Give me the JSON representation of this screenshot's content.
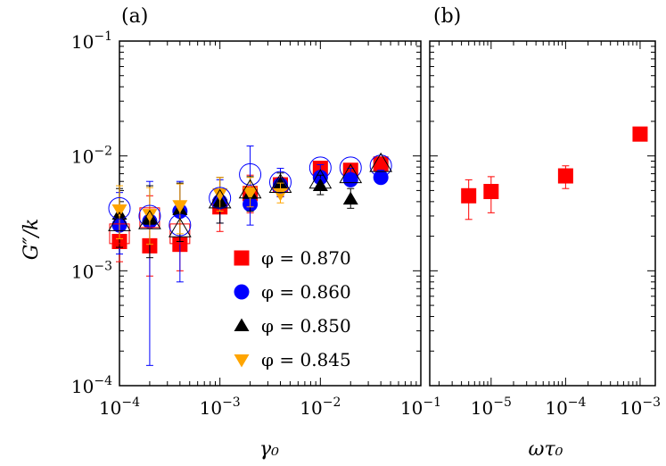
{
  "figure": {
    "panel_a_label": "(a)",
    "panel_b_label": "(b)",
    "ylabel": "G″/k",
    "xlabel_a": "γ₀",
    "xlabel_b": "ωτ₀"
  },
  "colors": {
    "phi_0870": "#ff0000",
    "phi_0860": "#0000ff",
    "phi_0850": "#000000",
    "phi_0845": "#ffa500"
  },
  "chart_data": [
    {
      "type": "scatter",
      "panel": "(a)",
      "xscale": "log",
      "yscale": "log",
      "xlabel": "γ₀",
      "ylabel": "G″/k",
      "xlim": [
        0.0001,
        0.1
      ],
      "ylim": [
        0.0001,
        0.1
      ],
      "x_ticks": [
        0.0001,
        0.001,
        0.01,
        0.1
      ],
      "x_tick_labels": [
        "10−4",
        "10−3",
        "10−2",
        "10−1"
      ],
      "y_ticks": [
        0.0001,
        0.001,
        0.01,
        0.1
      ],
      "y_tick_labels": [
        "10−4",
        "10−3",
        "10−2",
        "10−1"
      ],
      "legend_position": "bottom-center",
      "series": [
        {
          "name": "φ = 0.870",
          "marker": "square",
          "color": "#ff0000",
          "x": [
            0.0001,
            0.0002,
            0.0004,
            0.001,
            0.002,
            0.004,
            0.01,
            0.02,
            0.04
          ],
          "y": [
            0.0018,
            0.00165,
            0.0017,
            0.0036,
            0.0047,
            0.0056,
            0.0078,
            0.0075,
            0.0085
          ],
          "y_err_low": [
            0.0012,
            0.0009,
            0.001,
            0.0022,
            0.0032,
            0.0045,
            0.0066,
            0.0066,
            0.0075
          ],
          "y_err_high": [
            0.0026,
            0.0045,
            0.003,
            0.005,
            0.0068,
            0.0065,
            0.0088,
            0.0084,
            0.0095
          ]
        },
        {
          "name": "φ = 0.860",
          "marker": "circle",
          "color": "#0000ff",
          "x": [
            0.0001,
            0.0002,
            0.0004,
            0.001,
            0.002,
            0.004,
            0.01,
            0.02,
            0.04
          ],
          "y": [
            0.0025,
            0.0027,
            0.0033,
            0.004,
            0.0038,
            0.0056,
            0.0065,
            0.0062,
            0.0065
          ],
          "y_err_low": [
            0.0014,
            0.00015,
            0.0008,
            0.0026,
            0.0025,
            0.0044,
            0.0055,
            0.0055,
            0.0058
          ],
          "y_err_high": [
            0.0048,
            0.006,
            0.006,
            0.0062,
            0.0122,
            0.0078,
            0.0084,
            0.0078,
            0.0075
          ]
        },
        {
          "name": "φ = 0.850",
          "marker": "triangle-up",
          "color": "#000000",
          "x": [
            0.0001,
            0.0002,
            0.0004,
            0.001,
            0.002,
            0.004,
            0.01,
            0.02
          ],
          "y": [
            0.0031,
            0.0028,
            0.0034,
            0.004,
            0.0047,
            0.0057,
            0.0055,
            0.0042
          ],
          "y_err_low": [
            0.0016,
            0.0013,
            0.0018,
            0.0026,
            0.0033,
            0.0046,
            0.0046,
            0.0035
          ],
          "y_err_high": [
            0.0052,
            0.0055,
            0.0058,
            0.0065,
            0.0066,
            0.0071,
            0.0068,
            0.0052
          ]
        },
        {
          "name": "φ = 0.845",
          "marker": "triangle-down",
          "color": "#ffa500",
          "x": [
            0.0001,
            0.0002,
            0.0004,
            0.001,
            0.002,
            0.004
          ],
          "y": [
            0.0034,
            0.0031,
            0.0037,
            0.0047,
            0.0048,
            0.0047
          ],
          "y_err_low": [
            0.0019,
            0.0017,
            0.0021,
            0.0033,
            0.0036,
            0.0039
          ],
          "y_err_high": [
            0.0055,
            0.0053,
            0.0057,
            0.0065,
            0.0065,
            0.0058
          ]
        },
        {
          "name": "",
          "marker": "open-square",
          "color": "#ff0000",
          "x": [
            0.0001,
            0.0002,
            0.0004
          ],
          "y": [
            0.0021,
            0.0029,
            0.0021
          ]
        },
        {
          "name": "",
          "marker": "open-circle",
          "color": "#0000ff",
          "x": [
            0.0001,
            0.0002,
            0.0004,
            0.001,
            0.002,
            0.004,
            0.01,
            0.02,
            0.04
          ],
          "y": [
            0.0035,
            0.003,
            0.0025,
            0.0043,
            0.0069,
            0.0059,
            0.0079,
            0.0079,
            0.0082
          ]
        },
        {
          "name": "",
          "marker": "open-triangle-up",
          "color": "#000000",
          "x": [
            0.0001,
            0.0002,
            0.0004,
            0.001,
            0.002,
            0.004,
            0.01,
            0.02,
            0.04
          ],
          "y": [
            0.0026,
            0.0027,
            0.0023,
            0.0041,
            0.005,
            0.0056,
            0.0061,
            0.0068,
            0.0085
          ]
        }
      ]
    },
    {
      "type": "scatter",
      "panel": "(b)",
      "xscale": "log",
      "yscale": "log",
      "xlabel": "ωτ₀",
      "xlim": [
        1.5e-06,
        0.0016
      ],
      "ylim": [
        0.0001,
        0.1
      ],
      "x_ticks": [
        1e-05,
        0.0001,
        0.001
      ],
      "x_tick_labels": [
        "10−5",
        "10−4",
        "10−3"
      ],
      "series": [
        {
          "name": "",
          "marker": "square",
          "color": "#ff0000",
          "x": [
            5e-06,
            1e-05,
            0.0001,
            0.001
          ],
          "y": [
            0.0045,
            0.0049,
            0.0067,
            0.0155
          ],
          "y_err_low": [
            0.0028,
            0.0032,
            0.0052,
            0.0135
          ],
          "y_err_high": [
            0.0062,
            0.0066,
            0.0082,
            0.0172
          ]
        }
      ]
    }
  ]
}
